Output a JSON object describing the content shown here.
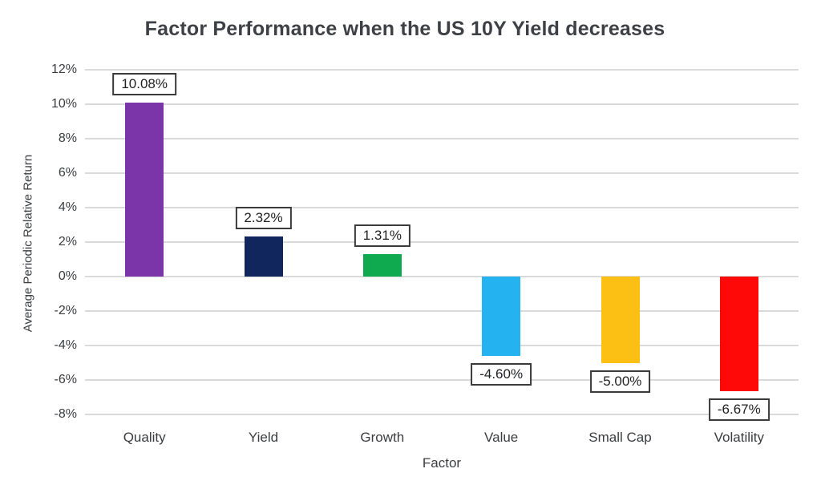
{
  "title": "Factor Performance when the US 10Y Yield decreases",
  "chart_data": {
    "type": "bar",
    "title": "Factor Performance when the US 10Y Yield decreases",
    "xlabel": "Factor",
    "ylabel": "Average Periodic Relative Return",
    "categories": [
      "Quality",
      "Yield",
      "Growth",
      "Value",
      "Small Cap",
      "Volatility"
    ],
    "values": [
      10.08,
      2.32,
      1.31,
      -4.6,
      -5.0,
      -6.67
    ],
    "data_labels": [
      "10.08%",
      "2.32%",
      "1.31%",
      "-4.60%",
      "-5.00%",
      "-6.67%"
    ],
    "bar_colors": [
      "#7b35a8",
      "#12265e",
      "#0fa950",
      "#24b3f0",
      "#fcbf13",
      "#fe0808"
    ],
    "ylim": [
      -8,
      12
    ],
    "ytick_step": 2,
    "ytick_labels": [
      "12%",
      "10%",
      "8%",
      "6%",
      "4%",
      "2%",
      "0%",
      "-2%",
      "-4%",
      "-6%",
      "-8%"
    ],
    "grid": true,
    "gridline_color": "#dadada",
    "legend": "none",
    "background_color": "#ffffff"
  }
}
